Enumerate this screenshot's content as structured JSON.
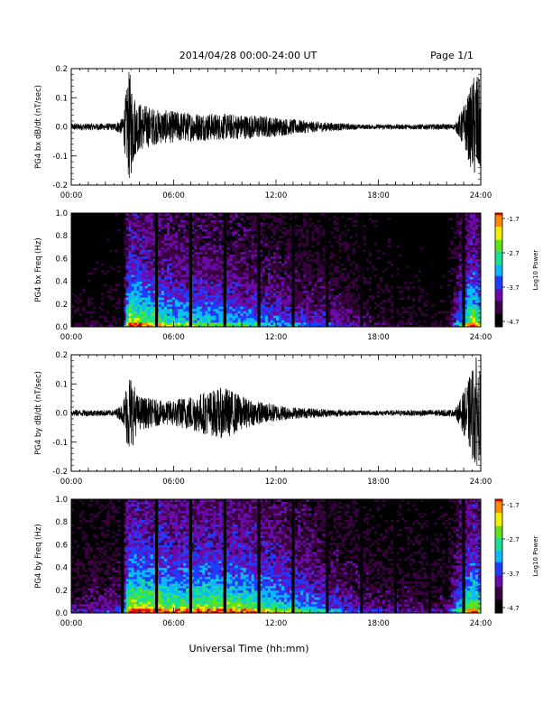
{
  "header": {
    "title": "2014/04/28  00:00-24:00 UT",
    "page": "Page 1/1"
  },
  "footer": {
    "xlabel": "Universal Time (hh:mm)"
  },
  "colors": {
    "trace": "#000000",
    "gap": "#000000",
    "colormap": [
      "#000000",
      "#3a0040",
      "#6a0aa8",
      "#1f3dff",
      "#0ab8ff",
      "#18e090",
      "#64e01a",
      "#f0f000",
      "#ff8800",
      "#ff0000"
    ]
  },
  "colorbar": {
    "label": "Log10 Power",
    "ticks": [
      "-1.7",
      "-2.7",
      "-3.7",
      "-4.7"
    ]
  },
  "chart_data": [
    {
      "type": "line",
      "name": "panel-bx-dbdt",
      "ylabel": "PG4 bx dB/dt (nT/sec)",
      "xlim": [
        0,
        24
      ],
      "ylim": [
        -0.2,
        0.2
      ],
      "x_ticks": [
        "00:00",
        "06:00",
        "12:00",
        "18:00",
        "24:00"
      ],
      "y_ticks": [
        "0.2",
        "0.1",
        "0.0",
        "-0.1",
        "-0.2"
      ],
      "envelope": [
        {
          "t": 0.0,
          "amp": 0.012
        },
        {
          "t": 2.5,
          "amp": 0.012
        },
        {
          "t": 3.0,
          "amp": 0.03
        },
        {
          "t": 3.4,
          "amp": 0.2
        },
        {
          "t": 3.8,
          "amp": 0.09
        },
        {
          "t": 5.0,
          "amp": 0.06
        },
        {
          "t": 7.0,
          "amp": 0.05
        },
        {
          "t": 9.0,
          "amp": 0.045
        },
        {
          "t": 11.0,
          "amp": 0.04
        },
        {
          "t": 14.0,
          "amp": 0.02
        },
        {
          "t": 17.0,
          "amp": 0.008
        },
        {
          "t": 22.5,
          "amp": 0.01
        },
        {
          "t": 23.2,
          "amp": 0.1
        },
        {
          "t": 23.7,
          "amp": 0.2
        },
        {
          "t": 24.0,
          "amp": 0.15
        }
      ]
    },
    {
      "type": "heatmap",
      "name": "panel-bx-freq",
      "ylabel": "PG4 bx Freq (Hz)",
      "xlim": [
        0,
        24
      ],
      "ylim": [
        0,
        1.0
      ],
      "x_ticks": [
        "00:00",
        "06:00",
        "12:00",
        "18:00",
        "24:00"
      ],
      "y_ticks": [
        "1.0",
        "0.8",
        "0.6",
        "0.4",
        "0.2",
        "0.0"
      ],
      "clim": [
        -4.7,
        -1.7
      ],
      "gaps_hours": [
        3.0,
        5.0,
        7.0,
        9.0,
        11.0,
        13.0,
        15.0,
        17.0,
        19.0,
        21.0,
        23.0
      ],
      "activity_profile": [
        {
          "t": 0,
          "level": 0.1
        },
        {
          "t": 3.0,
          "level": 0.15
        },
        {
          "t": 3.4,
          "level": 0.75
        },
        {
          "t": 6,
          "level": 0.55
        },
        {
          "t": 9,
          "level": 0.5
        },
        {
          "t": 12,
          "level": 0.4
        },
        {
          "t": 15,
          "level": 0.3
        },
        {
          "t": 18,
          "level": 0.15
        },
        {
          "t": 22,
          "level": 0.1
        },
        {
          "t": 23.5,
          "level": 0.75
        },
        {
          "t": 24,
          "level": 0.6
        }
      ]
    },
    {
      "type": "line",
      "name": "panel-by-dbdt",
      "ylabel": "PG4 by dB/dt (nT/sec)",
      "xlim": [
        0,
        24
      ],
      "ylim": [
        -0.2,
        0.2
      ],
      "x_ticks": [
        "00:00",
        "06:00",
        "12:00",
        "18:00",
        "24:00"
      ],
      "y_ticks": [
        "0.2",
        "0.1",
        "0.0",
        "-0.1",
        "-0.2"
      ],
      "envelope": [
        {
          "t": 0.0,
          "amp": 0.012
        },
        {
          "t": 2.5,
          "amp": 0.01
        },
        {
          "t": 3.0,
          "amp": 0.03
        },
        {
          "t": 3.4,
          "amp": 0.15
        },
        {
          "t": 3.9,
          "amp": 0.06
        },
        {
          "t": 5.5,
          "amp": 0.04
        },
        {
          "t": 9.0,
          "amp": 0.09
        },
        {
          "t": 10.5,
          "amp": 0.045
        },
        {
          "t": 13.0,
          "amp": 0.02
        },
        {
          "t": 17.0,
          "amp": 0.008
        },
        {
          "t": 22.5,
          "amp": 0.012
        },
        {
          "t": 23.2,
          "amp": 0.1
        },
        {
          "t": 23.7,
          "amp": 0.2
        },
        {
          "t": 24.0,
          "amp": 0.14
        }
      ]
    },
    {
      "type": "heatmap",
      "name": "panel-by-freq",
      "ylabel": "PG4 by Freq (Hz)",
      "xlim": [
        0,
        24
      ],
      "ylim": [
        0,
        1.0
      ],
      "x_ticks": [
        "00:00",
        "06:00",
        "12:00",
        "18:00",
        "24:00"
      ],
      "y_ticks": [
        "1.0",
        "0.8",
        "0.6",
        "0.4",
        "0.2",
        "0.0"
      ],
      "clim": [
        -4.7,
        -1.7
      ],
      "gaps_hours": [
        3.0,
        5.0,
        7.0,
        9.0,
        11.0,
        13.0,
        15.0,
        17.0,
        19.0,
        21.0,
        23.0
      ],
      "activity_profile": [
        {
          "t": 0,
          "level": 0.2
        },
        {
          "t": 3.0,
          "level": 0.3
        },
        {
          "t": 3.4,
          "level": 0.8
        },
        {
          "t": 6,
          "level": 0.7
        },
        {
          "t": 9,
          "level": 0.72
        },
        {
          "t": 12,
          "level": 0.6
        },
        {
          "t": 15,
          "level": 0.4
        },
        {
          "t": 18,
          "level": 0.22
        },
        {
          "t": 22,
          "level": 0.2
        },
        {
          "t": 23.5,
          "level": 0.75
        },
        {
          "t": 24,
          "level": 0.6
        }
      ]
    }
  ]
}
